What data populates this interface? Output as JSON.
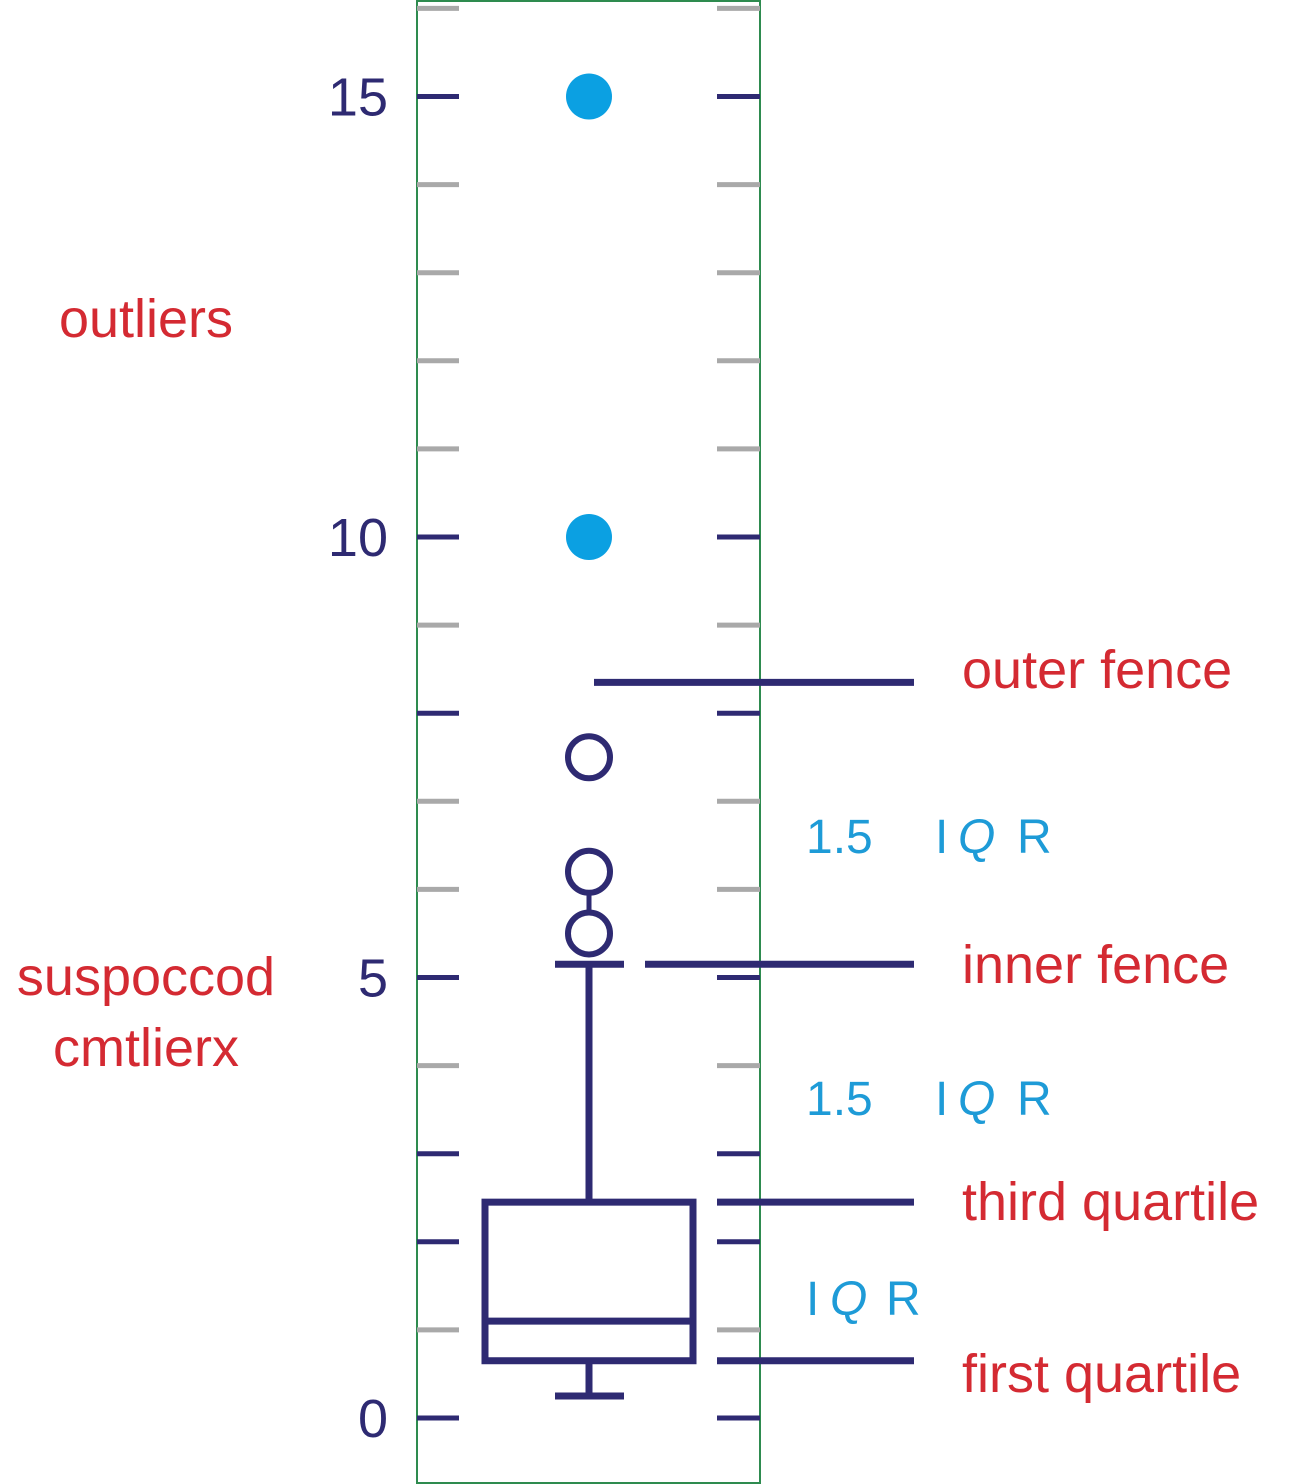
{
  "chart_data": {
    "type": "box",
    "title": "",
    "xlabel": "",
    "ylabel": "",
    "ylim": [
      -0.7,
      16.1
    ],
    "y_ticks": [
      0,
      5,
      10,
      15
    ],
    "y_tick_labels": [
      "0",
      "5",
      "10",
      "15"
    ],
    "minor_tick_step": 1,
    "box": {
      "whisker_low": 0.25,
      "first_quartile": 0.65,
      "median": 1.1,
      "third_quartile": 2.45,
      "whisker_high": 5.15
    },
    "fences": {
      "inner": 5.15,
      "outer": 8.35
    },
    "suspected_outliers": [
      5.5,
      6.2,
      7.5
    ],
    "outliers": [
      10,
      15
    ],
    "annotations": {
      "outliers": "outliers",
      "suspected_line1": "suspoccod",
      "suspected_line2": "cmtlierx",
      "outer_fence": "outer fence",
      "inner_fence": "inner fence",
      "third_quartile": "third quartile",
      "first_quartile": "first quartile",
      "iqr_upper_num": "1.5",
      "iqr_lower_num": "1.5",
      "iqr_i": "I",
      "iqr_q": "Q",
      "iqr_r": "R"
    },
    "colors": {
      "frame": "#2e8b4f",
      "box": "#2e2a72",
      "major_tick": "#2e2a72",
      "minor_tick": "#a9a9a9",
      "outlier_fill": "#0ba0e2",
      "annotation_red": "#d42a32",
      "annotation_blue": "#1e9bd7"
    }
  }
}
